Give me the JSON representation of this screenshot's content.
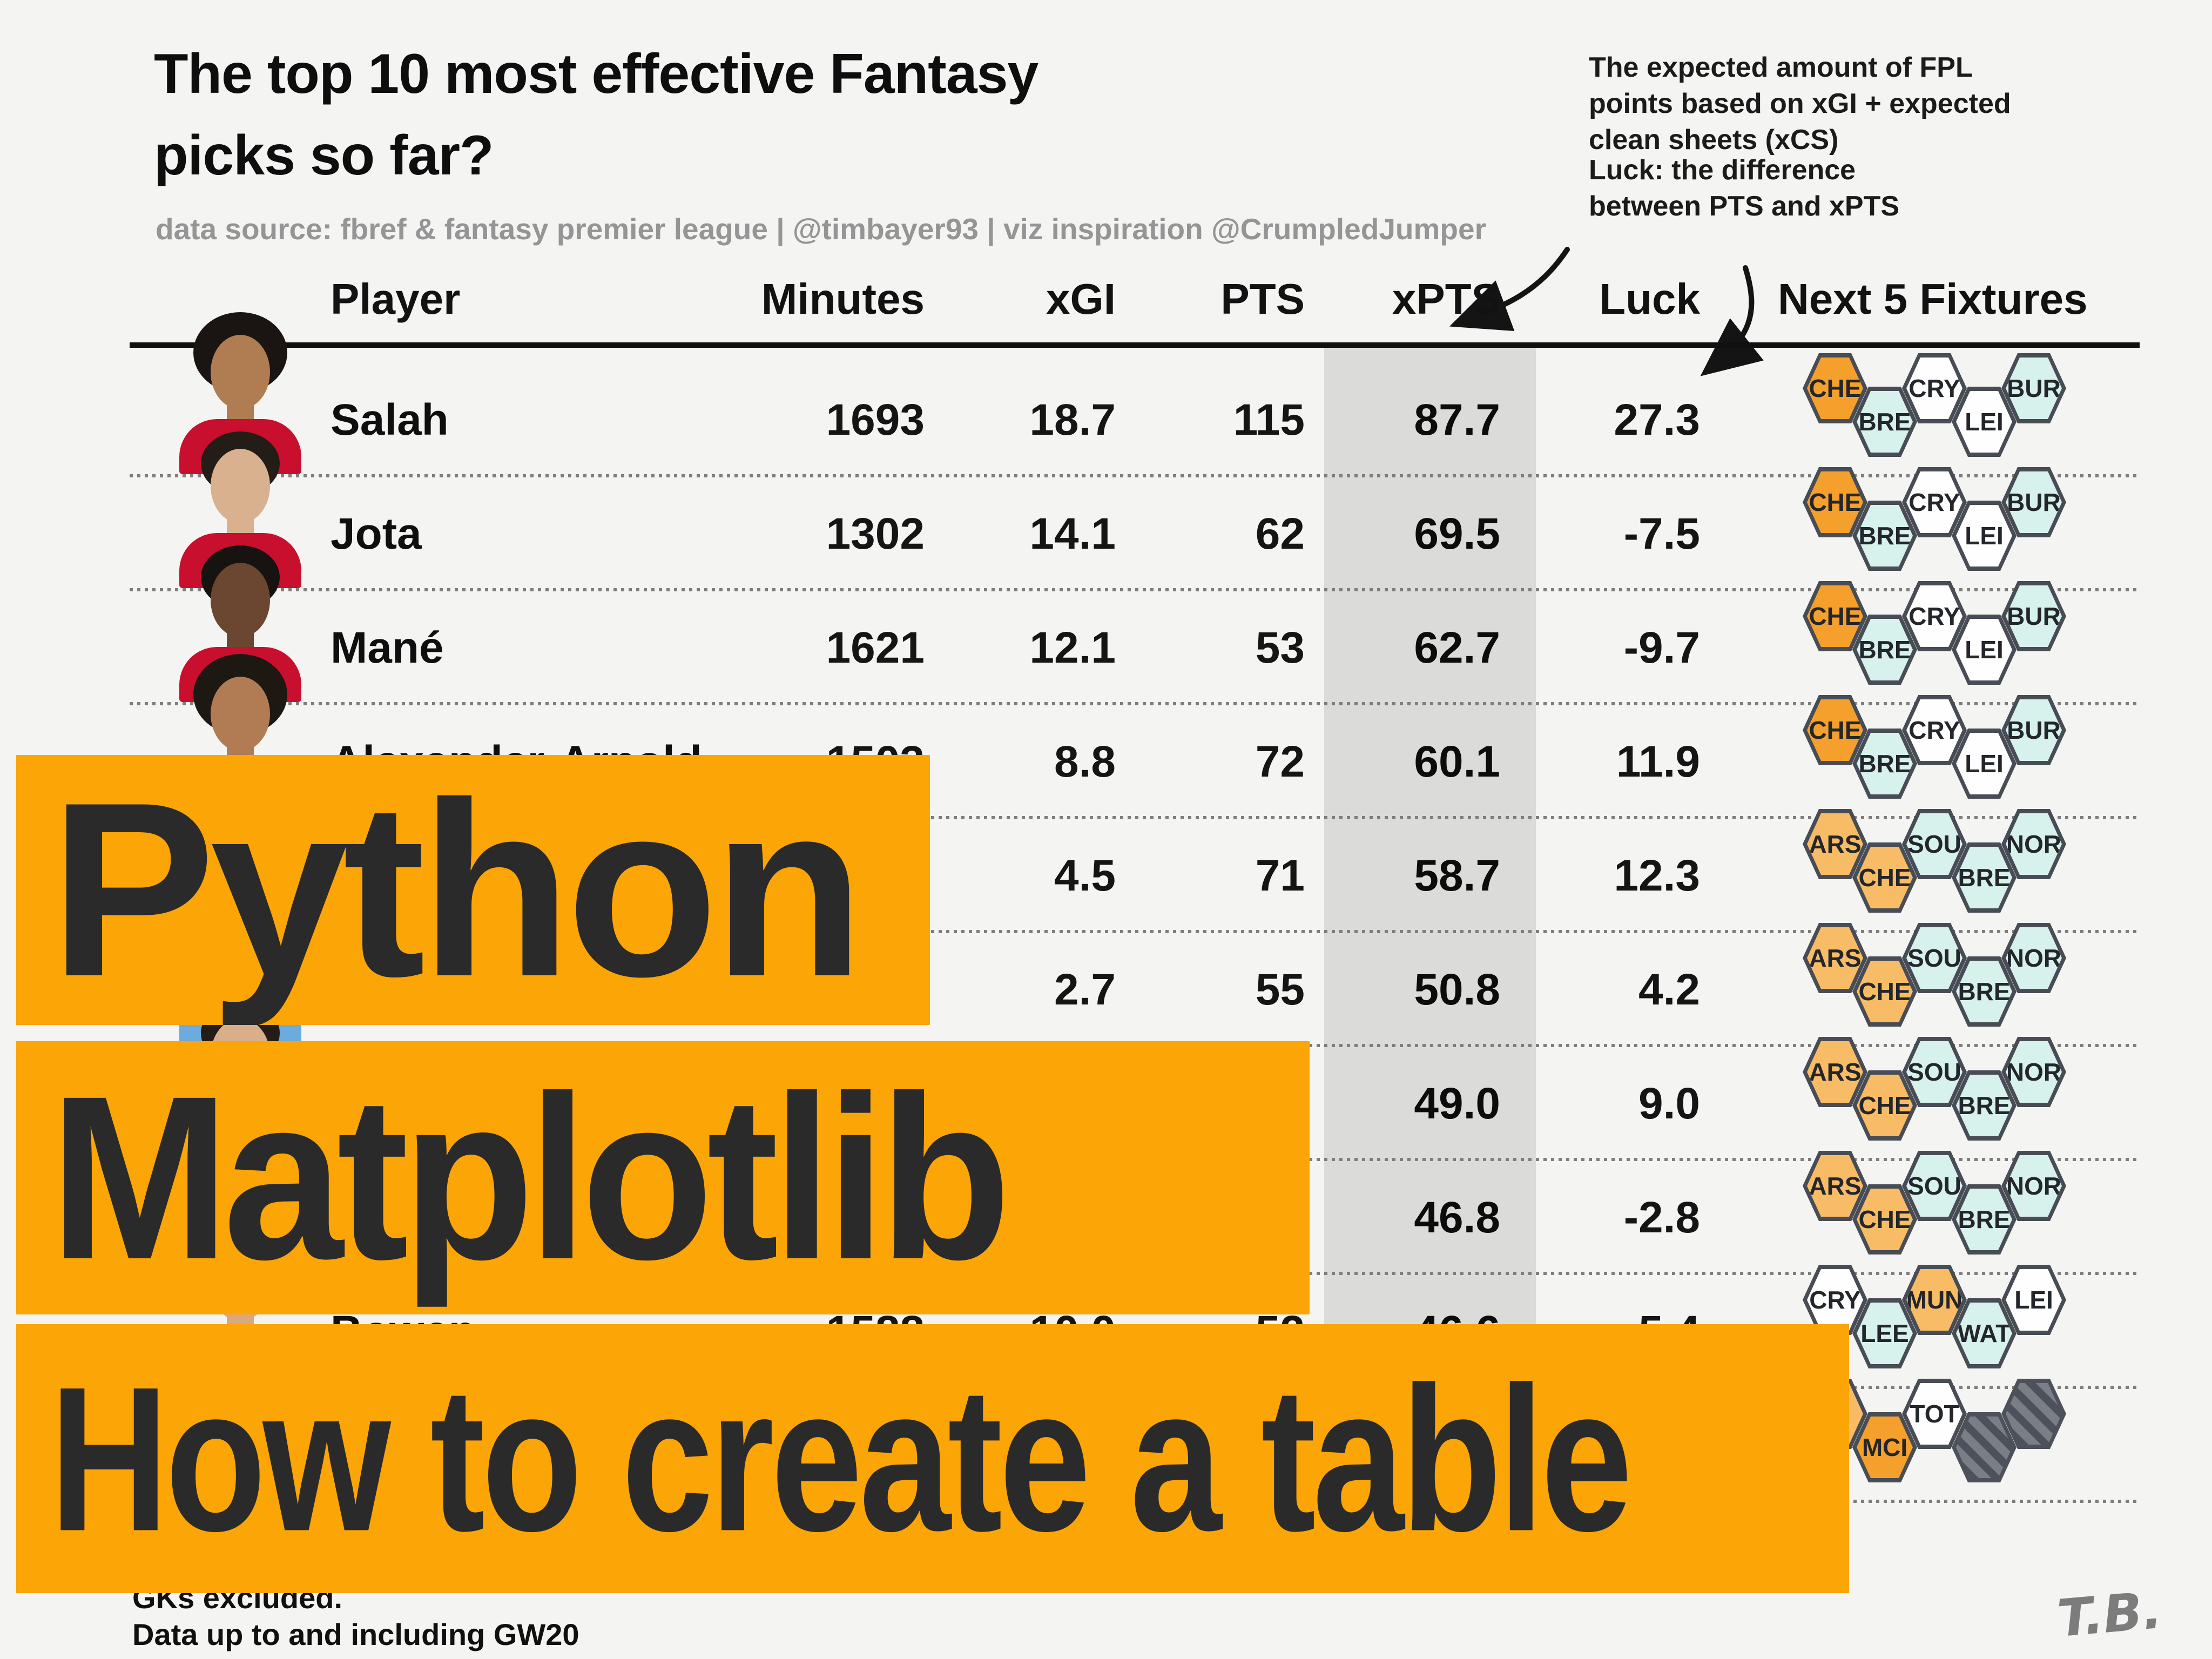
{
  "title": {
    "line1": "The top 10 most effective Fantasy",
    "line2": "picks so far?"
  },
  "subtitle": "data source: fbref & fantasy premier league | @timbayer93 | viz inspiration @CrumpledJumper",
  "annotations": {
    "xpts_note": [
      "The expected amount of FPL",
      "points based on xGI + expected",
      "clean sheets (xCS)"
    ],
    "luck_note": [
      "Luck: the difference",
      "between PTS and xPTS"
    ]
  },
  "overlay": {
    "line1": "Python",
    "line2": "Matplotlib",
    "line3": "How to create a table"
  },
  "footer": {
    "line1": "GKs excluded.",
    "line2": "Data up to and including GW20",
    "signature": "T.B."
  },
  "table": {
    "headers": [
      "Player",
      "Minutes",
      "xGI",
      "PTS",
      "xPTS",
      "Luck",
      "Next 5 Fixtures"
    ],
    "rows": [
      {
        "player": "Salah",
        "minutes": "1693",
        "xgi": "18.7",
        "pts": "115",
        "xpts": "87.7",
        "luck": "27.3",
        "avatar": {
          "skin": "#B07C52",
          "hair": "#1A1512",
          "kit": "liverpool",
          "hair_style": "big"
        },
        "fixtures": [
          {
            "code": "CHE",
            "difficulty": "hard"
          },
          {
            "code": "BRE",
            "difficulty": "easy"
          },
          {
            "code": "CRY",
            "difficulty": "neutral"
          },
          {
            "code": "LEI",
            "difficulty": "neutral"
          },
          {
            "code": "BUR",
            "difficulty": "easy"
          }
        ]
      },
      {
        "player": "Jota",
        "minutes": "1302",
        "xgi": "14.1",
        "pts": "62",
        "xpts": "69.5",
        "luck": "-7.5",
        "avatar": {
          "skin": "#D9B18E",
          "hair": "#241C16",
          "kit": "liverpool",
          "hair_style": "short"
        },
        "fixtures": [
          {
            "code": "CHE",
            "difficulty": "hard"
          },
          {
            "code": "BRE",
            "difficulty": "easy"
          },
          {
            "code": "CRY",
            "difficulty": "neutral"
          },
          {
            "code": "LEI",
            "difficulty": "neutral"
          },
          {
            "code": "BUR",
            "difficulty": "easy"
          }
        ]
      },
      {
        "player": "Mané",
        "minutes": "1621",
        "xgi": "12.1",
        "pts": "53",
        "xpts": "62.7",
        "luck": "-9.7",
        "avatar": {
          "skin": "#6B4630",
          "hair": "#171310",
          "kit": "liverpool",
          "hair_style": "short"
        },
        "fixtures": [
          {
            "code": "CHE",
            "difficulty": "hard"
          },
          {
            "code": "BRE",
            "difficulty": "easy"
          },
          {
            "code": "CRY",
            "difficulty": "neutral"
          },
          {
            "code": "LEI",
            "difficulty": "neutral"
          },
          {
            "code": "BUR",
            "difficulty": "easy"
          }
        ]
      },
      {
        "player": "Alexander-Arnold",
        "minutes": "1503",
        "xgi": "8.8",
        "pts": "72",
        "xpts": "60.1",
        "luck": "11.9",
        "avatar": {
          "skin": "#B17B54",
          "hair": "#1E1813",
          "kit": "liverpool",
          "hair_style": "big"
        },
        "fixtures": [
          {
            "code": "CHE",
            "difficulty": "hard"
          },
          {
            "code": "BRE",
            "difficulty": "easy"
          },
          {
            "code": "CRY",
            "difficulty": "neutral"
          },
          {
            "code": "LEI",
            "difficulty": "neutral"
          },
          {
            "code": "BUR",
            "difficulty": "easy"
          }
        ]
      },
      {
        "player": "",
        "minutes": "",
        "xgi": "4.5",
        "pts": "71",
        "xpts": "58.7",
        "luck": "12.3",
        "avatar": {
          "skin": "#D9AE8A",
          "hair": "#241C16",
          "kit": "mancity",
          "hair_style": "short"
        },
        "fixtures": [
          {
            "code": "ARS",
            "difficulty": "medium"
          },
          {
            "code": "CHE",
            "difficulty": "medium"
          },
          {
            "code": "SOU",
            "difficulty": "easy"
          },
          {
            "code": "BRE",
            "difficulty": "easy"
          },
          {
            "code": "NOR",
            "difficulty": "easy"
          }
        ]
      },
      {
        "player": "",
        "minutes": "",
        "xgi": "2.7",
        "pts": "55",
        "xpts": "50.8",
        "luck": "4.2",
        "avatar": {
          "skin": "#CF9E7C",
          "hair": "#241C16",
          "kit": "mancity",
          "hair_style": "short"
        },
        "fixtures": [
          {
            "code": "ARS",
            "difficulty": "medium"
          },
          {
            "code": "CHE",
            "difficulty": "medium"
          },
          {
            "code": "SOU",
            "difficulty": "easy"
          },
          {
            "code": "BRE",
            "difficulty": "easy"
          },
          {
            "code": "NOR",
            "difficulty": "easy"
          }
        ]
      },
      {
        "player": "",
        "minutes": "",
        "xgi": "",
        "pts": "",
        "xpts": "49.0",
        "luck": "9.0",
        "avatar": {
          "skin": "#D9AE8A",
          "hair": "#241C16",
          "kit": "mancity",
          "hair_style": "short"
        },
        "fixtures": [
          {
            "code": "ARS",
            "difficulty": "medium"
          },
          {
            "code": "CHE",
            "difficulty": "medium"
          },
          {
            "code": "SOU",
            "difficulty": "easy"
          },
          {
            "code": "BRE",
            "difficulty": "easy"
          },
          {
            "code": "NOR",
            "difficulty": "easy"
          }
        ]
      },
      {
        "player": "",
        "minutes": "",
        "xgi": "",
        "pts": "",
        "xpts": "46.8",
        "luck": "-2.8",
        "avatar": {
          "skin": "#D9AE8A",
          "hair": "#241C16",
          "kit": "mancity",
          "hair_style": "short"
        },
        "fixtures": [
          {
            "code": "ARS",
            "difficulty": "medium"
          },
          {
            "code": "CHE",
            "difficulty": "medium"
          },
          {
            "code": "SOU",
            "difficulty": "easy"
          },
          {
            "code": "BRE",
            "difficulty": "easy"
          },
          {
            "code": "NOR",
            "difficulty": "easy"
          }
        ]
      },
      {
        "player": "Bowen",
        "minutes": "1588",
        "xgi": "10.0",
        "pts": "52",
        "xpts": "46.6",
        "luck": "5.4",
        "avatar": {
          "skin": "#D9A87F",
          "hair": "#3A2A1C",
          "kit": "westham",
          "hair_style": "short"
        },
        "fixtures": [
          {
            "code": "CRY",
            "difficulty": "neutral"
          },
          {
            "code": "LEE",
            "difficulty": "easy"
          },
          {
            "code": "MUN",
            "difficulty": "medium"
          },
          {
            "code": "WAT",
            "difficulty": "easy"
          },
          {
            "code": "LEI",
            "difficulty": "neutral"
          }
        ]
      },
      {
        "player": "",
        "minutes": "",
        "xgi": "",
        "pts": "",
        "xpts": "",
        "luck": "",
        "avatar": null,
        "fixtures": [
          {
            "code": "",
            "difficulty": "medium"
          },
          {
            "code": "MCI",
            "difficulty": "hard"
          },
          {
            "code": "TOT",
            "difficulty": "neutral"
          },
          {
            "code": "",
            "difficulty": "blank"
          },
          {
            "code": "",
            "difficulty": "blank"
          }
        ]
      }
    ]
  },
  "chart_data": {
    "type": "table",
    "title": "The top 10 most effective Fantasy picks so far?",
    "columns": [
      "Player",
      "Minutes",
      "xGI",
      "PTS",
      "xPTS",
      "Luck",
      "Next 5 Fixtures"
    ],
    "rows": [
      [
        "Salah",
        1693,
        18.7,
        115,
        87.7,
        27.3,
        "CHE BRE CRY LEI BUR"
      ],
      [
        "Jota",
        1302,
        14.1,
        62,
        69.5,
        -7.5,
        "CHE BRE CRY LEI BUR"
      ],
      [
        "Mané",
        1621,
        12.1,
        53,
        62.7,
        -9.7,
        "CHE BRE CRY LEI BUR"
      ],
      [
        "Alexander-Arnold",
        1503,
        8.8,
        72,
        60.1,
        11.9,
        "CHE BRE CRY LEI BUR"
      ],
      [
        "(hidden)",
        null,
        4.5,
        71,
        58.7,
        12.3,
        "ARS CHE SOU BRE NOR"
      ],
      [
        "(hidden)",
        null,
        2.7,
        55,
        50.8,
        4.2,
        "ARS CHE SOU BRE NOR"
      ],
      [
        "(hidden)",
        null,
        null,
        null,
        49.0,
        9.0,
        "ARS CHE SOU BRE NOR"
      ],
      [
        "(hidden)",
        null,
        null,
        null,
        46.8,
        -2.8,
        "ARS CHE SOU BRE NOR"
      ],
      [
        "Bowen",
        1588,
        10.0,
        52,
        46.6,
        5.4,
        "CRY LEE MUN WAT LEI"
      ],
      [
        "(hidden)",
        null,
        null,
        null,
        null,
        null,
        "(hidden) MCI TOT (blank) (blank)"
      ]
    ],
    "notes": "xPTS column highlighted with gray band; rows partially covered by overlay blocks Python / Matplotlib / How to create a table"
  },
  "colors": {
    "background": "#F4F4F2",
    "overlay_block": "#FCA506",
    "xpts_band": "#DBDBD9",
    "fixture_hard": "#F5A02C",
    "fixture_medium": "#F8BC66",
    "fixture_easy": "#D7F1ED",
    "fixture_neutral": "#FEFEFE",
    "fixture_blank_dark": "#4D515A",
    "fixture_blank_light": "#7A7E87",
    "hex_border": "#474C55",
    "kit_liverpool": "#C8102E",
    "kit_mancity": "#6CABDD",
    "kit_westham": "#7C2C3B"
  }
}
